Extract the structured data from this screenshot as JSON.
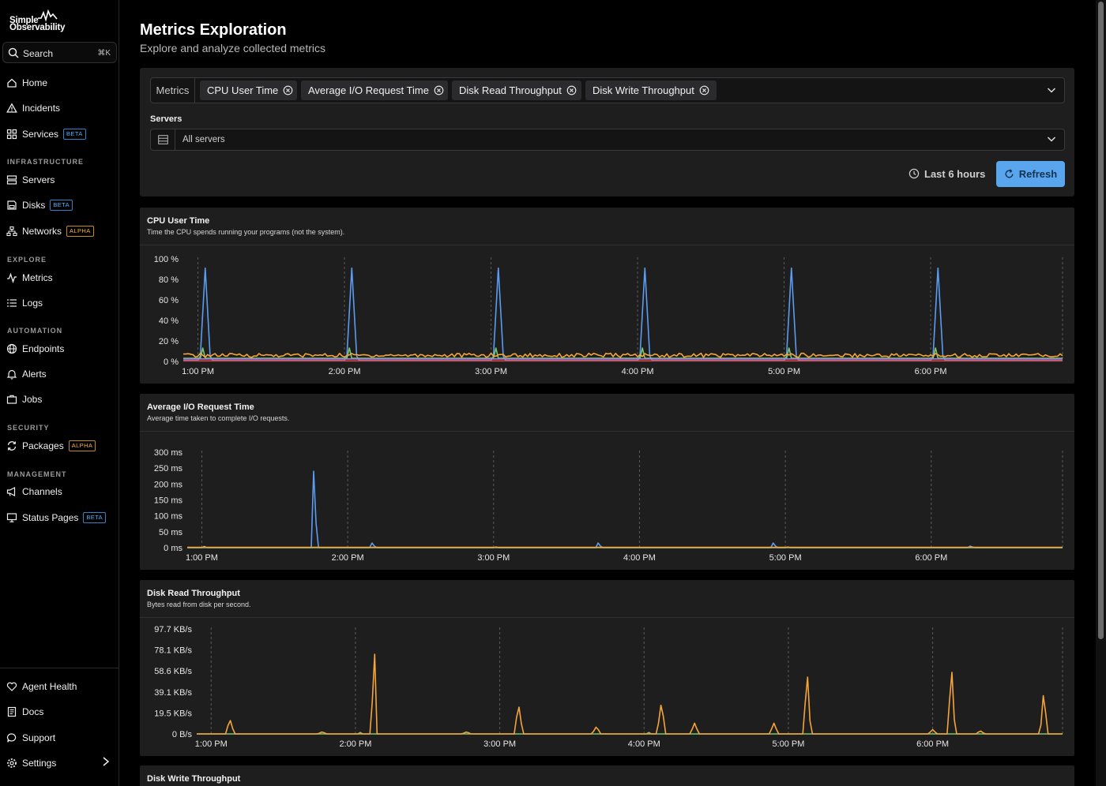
{
  "brand": {
    "line1": "Simple",
    "line2": "Observability"
  },
  "search": {
    "label": "Search",
    "shortcut": "⌘K"
  },
  "nav": {
    "home": "Home",
    "incidents": "Incidents",
    "services": "Services",
    "infrastructure_head": "INFRASTRUCTURE",
    "servers": "Servers",
    "disks": "Disks",
    "networks": "Networks",
    "explore_head": "EXPLORE",
    "metrics": "Metrics",
    "logs": "Logs",
    "automation_head": "AUTOMATION",
    "endpoints": "Endpoints",
    "alerts": "Alerts",
    "jobs": "Jobs",
    "security_head": "SECURITY",
    "packages": "Packages",
    "management_head": "MANAGEMENT",
    "channels": "Channels",
    "status_pages": "Status Pages",
    "agent_health": "Agent Health",
    "docs": "Docs",
    "support": "Support",
    "settings": "Settings",
    "badge_beta": "BETA",
    "badge_alpha": "ALPHA"
  },
  "page": {
    "title": "Metrics Exploration",
    "subtitle": "Explore and analyze collected metrics"
  },
  "filters": {
    "metrics_label": "Metrics",
    "chips": [
      "CPU User Time",
      "Average I/O Request Time",
      "Disk Read Throughput",
      "Disk Write Throughput"
    ],
    "servers_label": "Servers",
    "servers_value": "All servers",
    "time_range": "Last 6 hours",
    "refresh": "Refresh"
  },
  "colors": {
    "blue": "#5b9cf0",
    "orange": "#f5a43a",
    "green": "#7bc96f",
    "red": "#e0463e",
    "purple": "#9a86d8"
  },
  "panels": [
    {
      "title": "CPU User Time",
      "description": "Time the CPU spends running your programs (not the system)."
    },
    {
      "title": "Average I/O Request Time",
      "description": "Average time taken to complete I/O requests."
    },
    {
      "title": "Disk Read Throughput",
      "description": "Bytes read from disk per second."
    },
    {
      "title": "Disk Write Throughput",
      "description": ""
    }
  ],
  "chart_data": [
    {
      "type": "line",
      "title": "CPU User Time",
      "y_ticks": [
        "100 %",
        "80 %",
        "60 %",
        "40 %",
        "20 %",
        "0 %"
      ],
      "ylim": [
        0,
        100
      ],
      "x_ticks": [
        "1:00 PM",
        "2:00 PM",
        "3:00 PM",
        "4:00 PM",
        "5:00 PM",
        "6:00 PM"
      ],
      "xlim_hours": [
        12.9,
        18.9
      ],
      "series": [
        {
          "color": "#5b9cf0",
          "baseline": 1,
          "spikes": [
            [
              13.05,
              90,
              0.035
            ],
            [
              14.05,
              90,
              0.035
            ],
            [
              15.05,
              90,
              0.035
            ],
            [
              16.05,
              90,
              0.035
            ],
            [
              17.05,
              90,
              0.035
            ],
            [
              18.05,
              90,
              0.035
            ]
          ]
        },
        {
          "color": "#7bc96f",
          "baseline": 3,
          "spikes": [
            [
              13.03,
              14,
              0.012
            ],
            [
              14.03,
              14,
              0.012
            ],
            [
              15.03,
              14,
              0.012
            ],
            [
              16.03,
              14,
              0.012
            ],
            [
              17.03,
              14,
              0.012
            ],
            [
              18.03,
              14,
              0.012
            ]
          ]
        },
        {
          "color": "#f5a43a",
          "baseline": 6,
          "noise": 2
        },
        {
          "color": "#e0463e",
          "baseline": 0.5
        },
        {
          "color": "#9a86d8",
          "baseline": 2.5
        }
      ]
    },
    {
      "type": "line",
      "title": "Average I/O Request Time",
      "y_ticks": [
        "300 ms",
        "250 ms",
        "200 ms",
        "150 ms",
        "100 ms",
        "50 ms",
        "0 ms"
      ],
      "ylim": [
        0,
        300
      ],
      "x_ticks": [
        "1:00 PM",
        "2:00 PM",
        "3:00 PM",
        "4:00 PM",
        "5:00 PM",
        "6:00 PM"
      ],
      "xlim_hours": [
        12.9,
        18.9
      ],
      "series": [
        {
          "color": "#5b9cf0",
          "baseline": 0,
          "spikes": [
            [
              13.77,
              295,
              0.018
            ],
            [
              14.17,
              18,
              0.018
            ],
            [
              15.72,
              18,
              0.018
            ],
            [
              16.92,
              18,
              0.018
            ],
            [
              18.27,
              6,
              0.02
            ]
          ]
        },
        {
          "color": "#7bc96f",
          "baseline": 0,
          "spikes": [
            [
              13.02,
              5,
              0.015
            ],
            [
              15.02,
              3,
              0.015
            ],
            [
              17.02,
              3,
              0.015
            ]
          ]
        },
        {
          "color": "#f5a43a",
          "baseline": 1
        }
      ]
    },
    {
      "type": "line",
      "title": "Disk Read Throughput",
      "y_ticks": [
        "97.7 KB/s",
        "78.1 KB/s",
        "58.6 KB/s",
        "39.1 KB/s",
        "19.5 KB/s",
        "0 B/s"
      ],
      "ylim": [
        0,
        97.7
      ],
      "x_ticks": [
        "1:00 PM",
        "2:00 PM",
        "3:00 PM",
        "4:00 PM",
        "5:00 PM",
        "6:00 PM"
      ],
      "xlim_hours": [
        12.9,
        18.9
      ],
      "series": [
        {
          "color": "#7bc96f",
          "baseline": 0,
          "spikes": [
            [
              14.03,
              2,
              0.01
            ],
            [
              16.03,
              2,
              0.01
            ]
          ]
        },
        {
          "color": "#f5a43a",
          "baseline": 0,
          "spikes": [
            [
              13.13,
              14,
              0.03
            ],
            [
              13.77,
              2,
              0.03
            ],
            [
              14.13,
              89,
              0.02
            ],
            [
              14.77,
              2,
              0.03
            ],
            [
              15.13,
              28,
              0.03
            ],
            [
              15.67,
              7,
              0.03
            ],
            [
              16.12,
              30,
              0.03
            ],
            [
              16.35,
              10,
              0.03
            ],
            [
              16.9,
              10,
              0.03
            ],
            [
              17.13,
              61,
              0.025
            ],
            [
              18.0,
              4,
              0.03
            ],
            [
              18.13,
              66,
              0.025
            ],
            [
              18.33,
              3,
              0.03
            ],
            [
              18.77,
              41,
              0.025
            ]
          ]
        }
      ]
    }
  ]
}
